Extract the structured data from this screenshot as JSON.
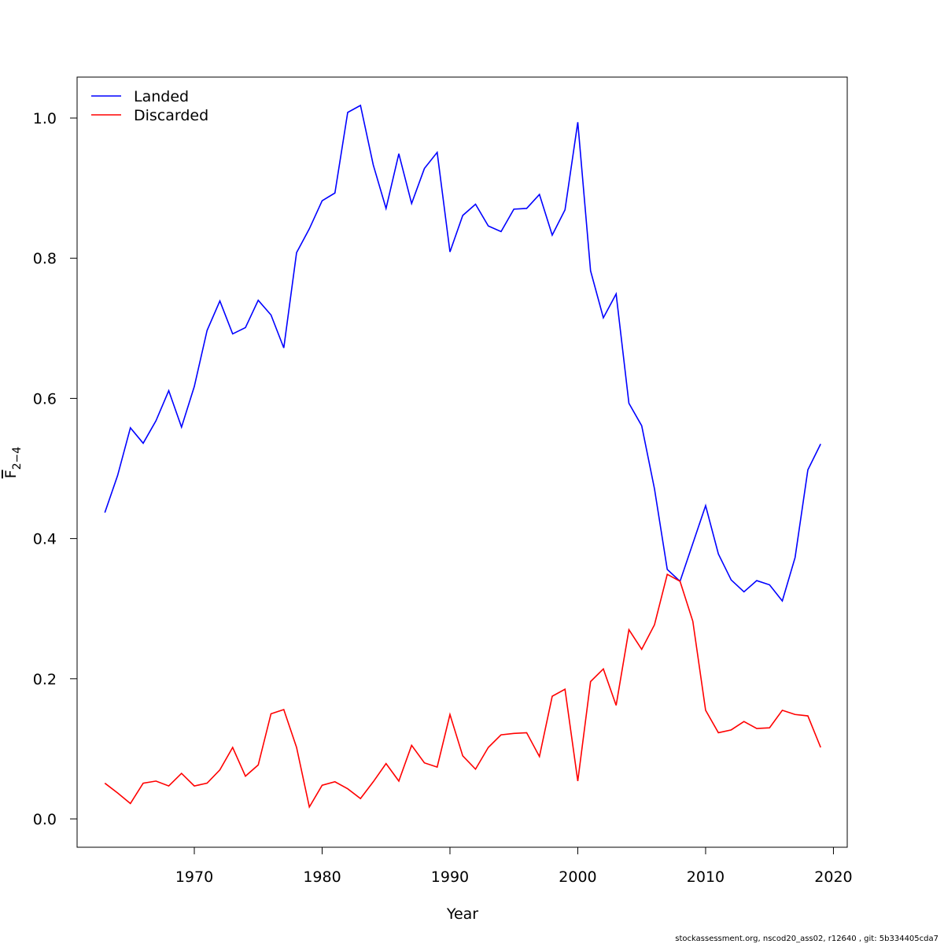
{
  "chart_data": {
    "type": "line",
    "xlabel": "Year",
    "ylabel": "F",
    "ylabel_subscript": "2−4",
    "footer": "stockassessment.org, nscod20_ass02, r12640 , git: 5b334405cda7",
    "x": [
      1963,
      1964,
      1965,
      1966,
      1967,
      1968,
      1969,
      1970,
      1971,
      1972,
      1973,
      1974,
      1975,
      1976,
      1977,
      1978,
      1979,
      1980,
      1981,
      1982,
      1983,
      1984,
      1985,
      1986,
      1987,
      1988,
      1989,
      1990,
      1991,
      1992,
      1993,
      1994,
      1995,
      1996,
      1997,
      1998,
      1999,
      2000,
      2001,
      2002,
      2003,
      2004,
      2005,
      2006,
      2007,
      2008,
      2009,
      2010,
      2011,
      2012,
      2013,
      2014,
      2015,
      2016,
      2017,
      2018,
      2019
    ],
    "series": [
      {
        "name": "Landed",
        "color": "#0000ff",
        "values": [
          0.437,
          0.49,
          0.558,
          0.536,
          0.568,
          0.611,
          0.559,
          0.617,
          0.697,
          0.739,
          0.692,
          0.701,
          0.74,
          0.719,
          0.672,
          0.808,
          0.842,
          0.882,
          0.893,
          1.008,
          1.018,
          0.933,
          0.871,
          0.949,
          0.878,
          0.928,
          0.951,
          0.809,
          0.861,
          0.877,
          0.846,
          0.838,
          0.87,
          0.871,
          0.891,
          0.833,
          0.869,
          0.994,
          0.782,
          0.715,
          0.749,
          0.593,
          0.561,
          0.471,
          0.356,
          0.339,
          0.393,
          0.447,
          0.378,
          0.341,
          0.324,
          0.34,
          0.334,
          0.311,
          0.373,
          0.498,
          0.535
        ]
      },
      {
        "name": "Discarded",
        "color": "#ff0000",
        "values": [
          0.051,
          0.037,
          0.022,
          0.051,
          0.054,
          0.047,
          0.065,
          0.047,
          0.051,
          0.07,
          0.102,
          0.061,
          0.077,
          0.15,
          0.156,
          0.102,
          0.017,
          0.048,
          0.053,
          0.043,
          0.029,
          0.053,
          0.079,
          0.054,
          0.105,
          0.08,
          0.074,
          0.149,
          0.09,
          0.071,
          0.102,
          0.12,
          0.122,
          0.123,
          0.089,
          0.175,
          0.185,
          0.054,
          0.196,
          0.214,
          0.162,
          0.27,
          0.242,
          0.277,
          0.349,
          0.339,
          0.282,
          0.155,
          0.123,
          0.127,
          0.139,
          0.129,
          0.13,
          0.155,
          0.149,
          0.147,
          0.102
        ]
      }
    ],
    "xlim": [
      1960.83,
      2021.08
    ],
    "ylim": [
      -0.0404,
      1.0584
    ],
    "xticks": [
      1970,
      1980,
      1990,
      2000,
      2010,
      2020
    ],
    "yticks": [
      {
        "value": 0,
        "label": "0.0"
      },
      0.2,
      0.4,
      0.6,
      0.8,
      {
        "value": 1,
        "label": "1.0"
      }
    ],
    "legend": "top-left"
  }
}
